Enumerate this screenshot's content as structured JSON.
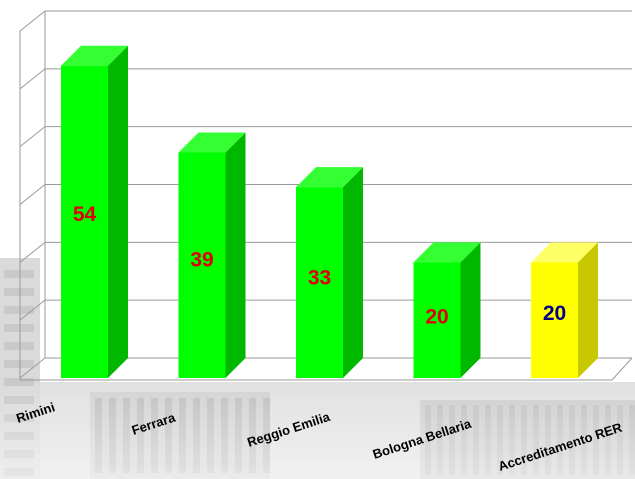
{
  "chart_data": {
    "type": "bar",
    "style": "3d-column",
    "categories": [
      "Rimini",
      "Ferrara",
      "Reggio Emilia",
      "Bologna Bellaria",
      "Accreditamento RER"
    ],
    "values": [
      54,
      39,
      33,
      20,
      20
    ],
    "ylim": [
      0,
      60
    ],
    "grid": true,
    "title": "",
    "xlabel": "",
    "ylabel": "",
    "colors": {
      "bar_front": "#00ff00",
      "bar_side": "#00b800",
      "bar_top": "#33ff33",
      "highlight_front": "#ffff00",
      "highlight_side": "#c8c800",
      "highlight_top": "#ffff66",
      "value_label": "#e00000",
      "highlight_value_label": "#000080",
      "gridline": "#9a9a9a"
    },
    "highlight_category": "Accreditamento RER"
  }
}
